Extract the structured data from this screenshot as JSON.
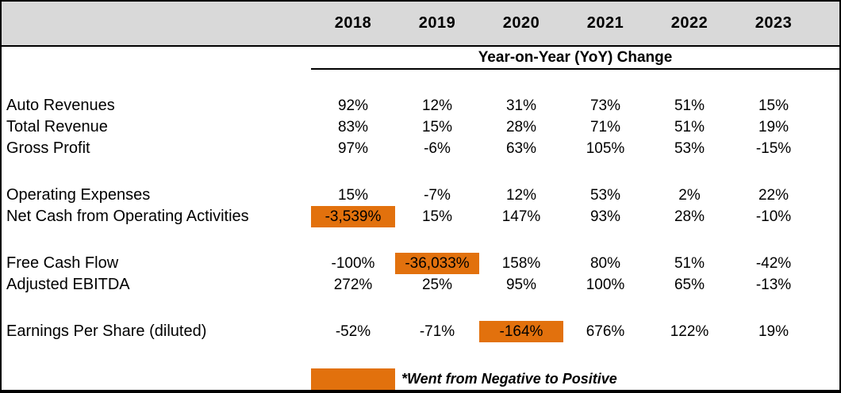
{
  "table": {
    "years": [
      "2018",
      "2019",
      "2020",
      "2021",
      "2022",
      "2023"
    ],
    "subtitle": "Year-on-Year (YoY) Change",
    "rows": [
      {
        "label": "Auto Revenues",
        "values": [
          "92%",
          "12%",
          "31%",
          "73%",
          "51%",
          "15%"
        ],
        "highlight": [],
        "group_start": false
      },
      {
        "label": "Total Revenue",
        "values": [
          "83%",
          "15%",
          "28%",
          "71%",
          "51%",
          "19%"
        ],
        "highlight": [],
        "group_start": false
      },
      {
        "label": "Gross Profit",
        "values": [
          "97%",
          "-6%",
          "63%",
          "105%",
          "53%",
          "-15%"
        ],
        "highlight": [],
        "group_start": false
      },
      {
        "label": "Operating Expenses",
        "values": [
          "15%",
          "-7%",
          "12%",
          "53%",
          "2%",
          "22%"
        ],
        "highlight": [],
        "group_start": true
      },
      {
        "label": "Net Cash from Operating Activities",
        "values": [
          "-3,539%",
          "15%",
          "147%",
          "93%",
          "28%",
          "-10%"
        ],
        "highlight": [
          0
        ],
        "group_start": false
      },
      {
        "label": "Free Cash Flow",
        "values": [
          "-100%",
          "-36,033%",
          "158%",
          "80%",
          "51%",
          "-42%"
        ],
        "highlight": [
          1
        ],
        "group_start": true
      },
      {
        "label": "Adjusted EBITDA",
        "values": [
          "272%",
          "25%",
          "95%",
          "100%",
          "65%",
          "-13%"
        ],
        "highlight": [],
        "group_start": false
      },
      {
        "label": "Earnings Per Share (diluted)",
        "values": [
          "-52%",
          "-71%",
          "-164%",
          "676%",
          "122%",
          "19%"
        ],
        "highlight": [
          2
        ],
        "group_start": true
      }
    ],
    "legend": {
      "note": "*Went from Negative to Positive"
    },
    "colors": {
      "header_bg": "#D9D9D9",
      "highlight_orange": "#E2710D",
      "border": "#000000"
    }
  },
  "chart_data": {
    "type": "table",
    "title": "Year-on-Year (YoY) Change",
    "columns": [
      "2018",
      "2019",
      "2020",
      "2021",
      "2022",
      "2023"
    ],
    "unit": "%",
    "series": [
      {
        "name": "Auto Revenues",
        "values": [
          92,
          12,
          31,
          73,
          51,
          15
        ]
      },
      {
        "name": "Total Revenue",
        "values": [
          83,
          15,
          28,
          71,
          51,
          19
        ]
      },
      {
        "name": "Gross Profit",
        "values": [
          97,
          -6,
          63,
          105,
          53,
          -15
        ]
      },
      {
        "name": "Operating Expenses",
        "values": [
          15,
          -7,
          12,
          53,
          2,
          22
        ]
      },
      {
        "name": "Net Cash from Operating Activities",
        "values": [
          -3539,
          15,
          147,
          93,
          28,
          -10
        ]
      },
      {
        "name": "Free Cash Flow",
        "values": [
          -100,
          -36033,
          158,
          80,
          51,
          -42
        ]
      },
      {
        "name": "Adjusted EBITDA",
        "values": [
          272,
          25,
          95,
          100,
          65,
          -13
        ]
      },
      {
        "name": "Earnings Per Share (diluted)",
        "values": [
          -52,
          -71,
          -164,
          676,
          122,
          19
        ]
      }
    ],
    "highlighted_cells": [
      {
        "row": "Net Cash from Operating Activities",
        "column": "2018",
        "value": -3539,
        "meaning": "Went from Negative to Positive"
      },
      {
        "row": "Free Cash Flow",
        "column": "2019",
        "value": -36033,
        "meaning": "Went from Negative to Positive"
      },
      {
        "row": "Earnings Per Share (diluted)",
        "column": "2020",
        "value": -164,
        "meaning": "Went from Negative to Positive"
      }
    ],
    "annotations": [
      "*Went from Negative to Positive"
    ]
  }
}
